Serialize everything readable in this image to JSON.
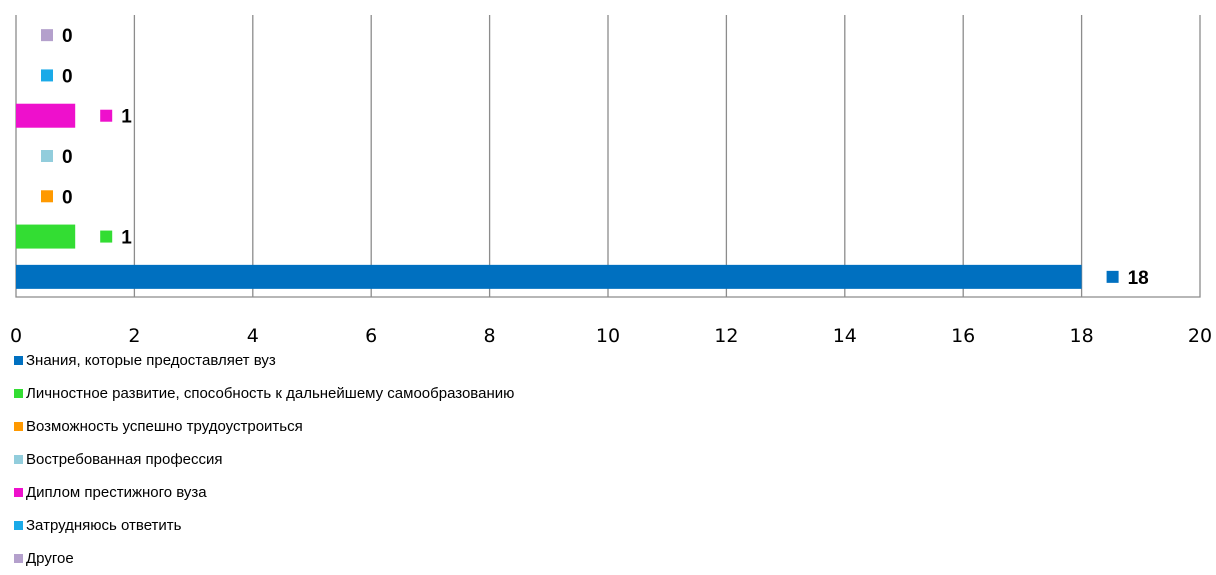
{
  "chart_data": {
    "type": "bar",
    "orientation": "horizontal",
    "categories": [
      "Знания, которые предоставляет вуз",
      "Личностное развитие, способность к дальнейшему самообразованию",
      "Возможность успешно трудоустроиться",
      "Востребованная профессия",
      "Диплом престижного вуза",
      "Затрудняюсь ответить",
      "Другое"
    ],
    "values": [
      18,
      1,
      0,
      0,
      1,
      0,
      0
    ],
    "data_labels": [
      "18",
      "1",
      "0",
      "0",
      "1",
      "0",
      "0"
    ],
    "colors": [
      "#0070C0",
      "#33DD33",
      "#FF9900",
      "#92CDDC",
      "#EE10CC",
      "#1AAAE8",
      "#B4A0CC"
    ],
    "xlim": [
      0,
      20
    ],
    "x_ticks": [
      0,
      2,
      4,
      6,
      8,
      10,
      12,
      14,
      16,
      18,
      20
    ],
    "x_tick_labels": [
      "0",
      "2",
      "4",
      "6",
      "8",
      "10",
      "12",
      "14",
      "16",
      "18",
      "20"
    ],
    "grid": "vertical",
    "legend": "bottom-left",
    "title": "",
    "xlabel": "",
    "ylabel": ""
  }
}
